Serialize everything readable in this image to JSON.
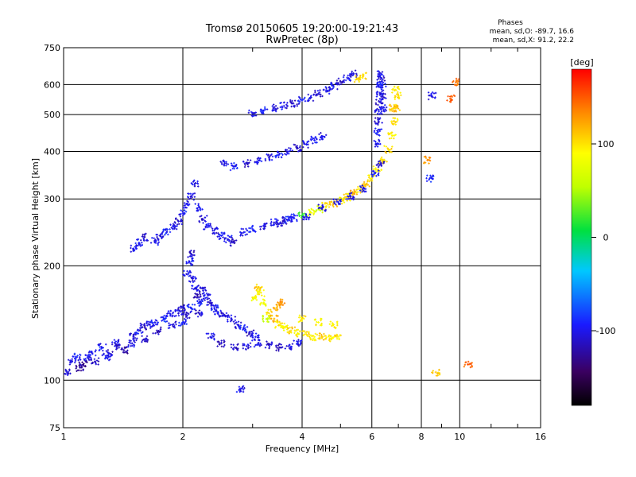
{
  "chart_data": {
    "type": "scatter",
    "title": "Tromsø 20150605 19:20:00-19:21:43",
    "subtitle": "RwPretec (8p)",
    "xlabel": "Frequency [MHz]",
    "ylabel": "Stationary phase Virtual Height [km]",
    "x_scale": "log2",
    "y_scale": "log",
    "xlim": [
      1,
      16
    ],
    "ylim": [
      75,
      750
    ],
    "x_ticks": [
      1,
      2,
      4,
      6,
      8,
      10,
      16
    ],
    "x_tick_labels": [
      "1",
      "2",
      "4",
      "6",
      "8",
      "10",
      "16"
    ],
    "y_ticks": [
      75,
      100,
      200,
      300,
      400,
      500,
      600,
      750
    ],
    "y_tick_labels": [
      "75",
      "100",
      "200",
      "300",
      "400",
      "500",
      "600",
      "750"
    ],
    "grid": true,
    "colorbar": {
      "label": "[deg]",
      "range": [
        -180,
        180
      ],
      "ticks": [
        100,
        0,
        -100
      ],
      "tick_labels": [
        "100",
        "0",
        "-100"
      ]
    },
    "stats": {
      "heading": "Phases",
      "line_o": "mean, sd,O: -89.7, 16.6",
      "line_x": "mean, sd,X:  91.2, 22.2"
    },
    "series": [
      {
        "points": [
          [
            1.02,
            105,
            -110
          ],
          [
            1.05,
            112,
            -105
          ],
          [
            1.1,
            108,
            -120
          ],
          [
            1.15,
            115,
            -100
          ],
          [
            1.2,
            112,
            -115
          ],
          [
            1.25,
            122,
            -95
          ],
          [
            1.3,
            118,
            -110
          ],
          [
            1.35,
            125,
            -100
          ],
          [
            1.42,
            120,
            -120
          ],
          [
            1.5,
            130,
            -105
          ],
          [
            1.55,
            135,
            -95
          ],
          [
            1.6,
            128,
            -110
          ],
          [
            1.65,
            140,
            -100
          ],
          [
            1.72,
            135,
            -115
          ],
          [
            1.8,
            145,
            -90
          ],
          [
            1.88,
            140,
            -105
          ],
          [
            1.95,
            150,
            -100
          ],
          [
            2.0,
            142,
            -95
          ],
          [
            2.05,
            148,
            -110
          ],
          [
            2.1,
            155,
            -90
          ],
          [
            2.2,
            150,
            -105
          ],
          [
            2.35,
            130,
            -100
          ],
          [
            2.5,
            125,
            -115
          ],
          [
            2.7,
            122,
            -110
          ],
          [
            2.9,
            123,
            -105
          ],
          [
            3.1,
            125,
            -100
          ],
          [
            3.3,
            124,
            -110
          ],
          [
            3.5,
            122,
            -115
          ],
          [
            3.7,
            123,
            -105
          ],
          [
            3.9,
            125,
            -100
          ],
          [
            1.08,
            115,
            -95
          ],
          [
            1.12,
            110,
            -130
          ],
          [
            1.18,
            118,
            -100
          ],
          [
            1.28,
            115,
            -95
          ],
          [
            1.38,
            122,
            -110
          ],
          [
            1.48,
            125,
            -100
          ],
          [
            1.58,
            138,
            -115
          ],
          [
            1.7,
            142,
            -95
          ],
          [
            1.85,
            150,
            -100
          ],
          [
            1.98,
            155,
            -110
          ]
        ]
      },
      {
        "points": [
          [
            2.05,
            190,
            -100
          ],
          [
            2.08,
            205,
            -95
          ],
          [
            2.1,
            215,
            -110
          ],
          [
            2.12,
            185,
            -105
          ],
          [
            2.15,
            175,
            -100
          ],
          [
            2.18,
            168,
            -115
          ],
          [
            2.2,
            160,
            -95
          ],
          [
            2.25,
            172,
            -105
          ],
          [
            2.3,
            165,
            -100
          ],
          [
            2.35,
            160,
            -110
          ],
          [
            2.4,
            155,
            -95
          ],
          [
            2.45,
            150,
            -100
          ],
          [
            2.55,
            148,
            -110
          ],
          [
            2.65,
            145,
            -100
          ],
          [
            2.75,
            140,
            -105
          ],
          [
            2.85,
            137,
            -95
          ],
          [
            2.95,
            133,
            -110
          ],
          [
            3.05,
            130,
            -100
          ]
        ]
      },
      {
        "points": [
          [
            3.05,
            165,
            90
          ],
          [
            3.1,
            175,
            110
          ],
          [
            3.15,
            170,
            95
          ],
          [
            3.2,
            160,
            85
          ],
          [
            3.3,
            150,
            100
          ],
          [
            3.4,
            145,
            120
          ],
          [
            3.5,
            140,
            95
          ],
          [
            3.6,
            138,
            90
          ],
          [
            3.75,
            135,
            105
          ],
          [
            3.9,
            133,
            95
          ],
          [
            4.1,
            132,
            100
          ],
          [
            4.3,
            130,
            90
          ],
          [
            4.5,
            130,
            110
          ],
          [
            4.7,
            129,
            95
          ],
          [
            4.9,
            130,
            100
          ],
          [
            3.25,
            145,
            60
          ],
          [
            3.45,
            155,
            120
          ],
          [
            3.55,
            160,
            130
          ],
          [
            4.0,
            145,
            100
          ],
          [
            4.4,
            142,
            90
          ],
          [
            4.8,
            140,
            95
          ]
        ]
      },
      {
        "points": [
          [
            1.5,
            222,
            -100
          ],
          [
            1.55,
            230,
            -95
          ],
          [
            1.6,
            238,
            -110
          ],
          [
            1.7,
            232,
            -100
          ],
          [
            1.75,
            240,
            -105
          ],
          [
            1.82,
            245,
            -95
          ],
          [
            1.9,
            255,
            -100
          ],
          [
            1.95,
            262,
            -110
          ],
          [
            2.0,
            275,
            -95
          ],
          [
            2.05,
            290,
            -100
          ],
          [
            2.1,
            305,
            -105
          ],
          [
            2.15,
            330,
            -100
          ],
          [
            2.2,
            285,
            -95
          ],
          [
            2.25,
            265,
            -110
          ],
          [
            2.3,
            255,
            -100
          ],
          [
            2.4,
            248,
            -105
          ],
          [
            2.5,
            240,
            -95
          ],
          [
            2.6,
            235,
            -100
          ],
          [
            2.7,
            230,
            -110
          ]
        ]
      },
      {
        "points": [
          [
            2.85,
            245,
            -100
          ],
          [
            3.0,
            250,
            -95
          ],
          [
            3.2,
            255,
            -105
          ],
          [
            3.4,
            260,
            -100
          ],
          [
            3.6,
            263,
            -110
          ],
          [
            3.8,
            268,
            -95
          ],
          [
            4.0,
            272,
            20
          ],
          [
            4.2,
            277,
            80
          ],
          [
            4.4,
            282,
            60
          ],
          [
            4.6,
            287,
            100
          ],
          [
            4.8,
            292,
            110
          ],
          [
            5.0,
            297,
            95
          ],
          [
            5.2,
            303,
            100
          ],
          [
            5.4,
            310,
            120
          ],
          [
            5.6,
            318,
            100
          ],
          [
            5.8,
            328,
            110
          ],
          [
            6.0,
            340,
            100
          ],
          [
            6.2,
            358,
            95
          ],
          [
            6.4,
            380,
            100
          ],
          [
            6.6,
            405,
            105
          ],
          [
            6.75,
            440,
            95
          ],
          [
            6.85,
            480,
            100
          ],
          [
            6.9,
            520,
            110
          ],
          [
            3.5,
            258,
            -105
          ],
          [
            3.7,
            265,
            -95
          ],
          [
            4.1,
            270,
            -100
          ],
          [
            4.5,
            285,
            -110
          ],
          [
            4.9,
            295,
            -100
          ],
          [
            5.3,
            305,
            -105
          ],
          [
            5.7,
            320,
            -100
          ],
          [
            6.1,
            350,
            -95
          ],
          [
            6.3,
            370,
            -110
          ]
        ]
      },
      {
        "points": [
          [
            6.2,
            420,
            -100
          ],
          [
            6.22,
            450,
            -95
          ],
          [
            6.24,
            480,
            -110
          ],
          [
            6.25,
            510,
            -100
          ],
          [
            6.27,
            540,
            -105
          ],
          [
            6.28,
            570,
            -95
          ],
          [
            6.3,
            600,
            -100
          ],
          [
            6.32,
            620,
            -110
          ],
          [
            6.34,
            640,
            -100
          ],
          [
            6.36,
            600,
            -95
          ],
          [
            6.38,
            560,
            -105
          ],
          [
            6.4,
            520,
            -100
          ]
        ]
      },
      {
        "points": [
          [
            2.55,
            375,
            -100
          ],
          [
            2.7,
            365,
            -95
          ],
          [
            2.9,
            372,
            -110
          ],
          [
            3.1,
            378,
            -100
          ],
          [
            3.3,
            385,
            -105
          ],
          [
            3.5,
            392,
            -95
          ],
          [
            3.7,
            400,
            -100
          ],
          [
            3.9,
            408,
            -110
          ],
          [
            4.1,
            418,
            -100
          ],
          [
            4.3,
            428,
            -95
          ],
          [
            4.5,
            438,
            -105
          ]
        ]
      },
      {
        "points": [
          [
            3.0,
            505,
            -100
          ],
          [
            3.2,
            512,
            -95
          ],
          [
            3.4,
            520,
            -105
          ],
          [
            3.6,
            527,
            -100
          ],
          [
            3.8,
            535,
            -110
          ],
          [
            4.0,
            545,
            -95
          ],
          [
            4.2,
            555,
            -100
          ],
          [
            4.4,
            568,
            -105
          ],
          [
            4.6,
            580,
            -100
          ],
          [
            4.8,
            595,
            -95
          ],
          [
            5.0,
            610,
            -110
          ],
          [
            5.2,
            625,
            -100
          ],
          [
            5.4,
            640,
            -105
          ]
        ]
      },
      {
        "points": [
          [
            5.5,
            620,
            110
          ],
          [
            5.7,
            630,
            100
          ],
          [
            6.9,
            580,
            95
          ],
          [
            7.0,
            560,
            100
          ],
          [
            6.8,
            520,
            110
          ],
          [
            8.5,
            560,
            -100
          ],
          [
            9.8,
            610,
            140
          ],
          [
            8.3,
            380,
            130
          ],
          [
            8.4,
            340,
            -90
          ],
          [
            9.5,
            550,
            150
          ],
          [
            10.5,
            110,
            150
          ],
          [
            8.7,
            105,
            110
          ],
          [
            2.8,
            95,
            -100
          ]
        ]
      }
    ]
  }
}
